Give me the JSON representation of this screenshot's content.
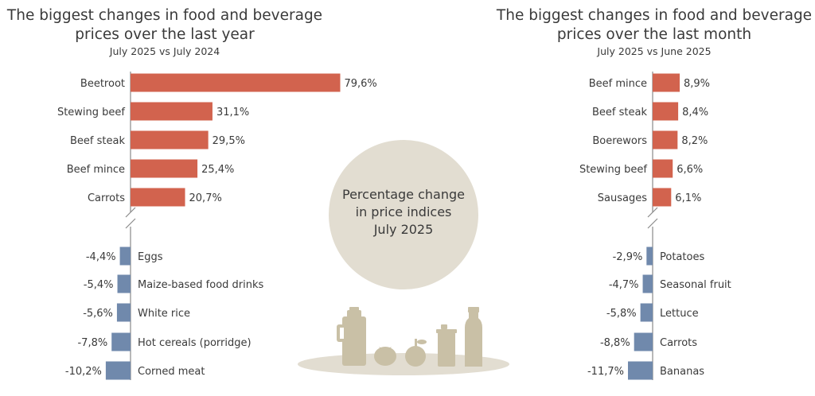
{
  "center_label": {
    "line1": "Percentage change",
    "line2": "in price indices",
    "line3": "July 2025"
  },
  "colors": {
    "increase": "#d2634e",
    "decrease": "#7089ac",
    "circle": "#e2ddd1",
    "food_icons": "#c9c0a6",
    "axis": "#8a8a8a",
    "text": "#3a3a3a"
  },
  "icons": [
    "milk-jug-icon",
    "tomato-icon",
    "apple-icon",
    "tin-can-icon",
    "bottle-icon"
  ],
  "chart_data": [
    {
      "type": "bar",
      "orientation": "horizontal",
      "title": "The biggest changes in food and beverage prices over the last year",
      "title_lines": [
        "The biggest changes in food and beverage",
        "prices over the last year"
      ],
      "subtitle": "July 2025 vs July 2024",
      "axis_break": true,
      "increases": [
        {
          "label": "Beetroot",
          "value": 79.6,
          "display": "79,6%"
        },
        {
          "label": "Stewing beef",
          "value": 31.1,
          "display": "31,1%"
        },
        {
          "label": "Beef steak",
          "value": 29.5,
          "display": "29,5%"
        },
        {
          "label": "Beef mince",
          "value": 25.4,
          "display": "25,4%"
        },
        {
          "label": "Carrots",
          "value": 20.7,
          "display": "20,7%"
        }
      ],
      "decreases": [
        {
          "label": "Eggs",
          "value": -4.4,
          "display": "-4,4%"
        },
        {
          "label": "Maize-based food drinks",
          "value": -5.4,
          "display": "-5,4%"
        },
        {
          "label": "White rice",
          "value": -5.6,
          "display": "-5,6%"
        },
        {
          "label": "Hot cereals (porridge)",
          "value": -7.8,
          "display": "-7,8%"
        },
        {
          "label": "Corned meat",
          "value": -10.2,
          "display": "-10,2%"
        }
      ]
    },
    {
      "type": "bar",
      "orientation": "horizontal",
      "title": "The biggest changes in food and beverage prices over the last month",
      "title_lines": [
        "The biggest changes in food and beverage",
        "prices over the last month"
      ],
      "subtitle": "July 2025 vs June 2025",
      "axis_break": true,
      "increases": [
        {
          "label": "Beef mince",
          "value": 8.9,
          "display": "8,9%"
        },
        {
          "label": "Beef steak",
          "value": 8.4,
          "display": "8,4%"
        },
        {
          "label": "Boerewors",
          "value": 8.2,
          "display": "8,2%"
        },
        {
          "label": "Stewing beef",
          "value": 6.6,
          "display": "6,6%"
        },
        {
          "label": "Sausages",
          "value": 6.1,
          "display": "6,1%"
        }
      ],
      "decreases": [
        {
          "label": "Potatoes",
          "value": -2.9,
          "display": "-2,9%"
        },
        {
          "label": "Seasonal fruit",
          "value": -4.7,
          "display": "-4,7%"
        },
        {
          "label": "Lettuce",
          "value": -5.8,
          "display": "-5,8%"
        },
        {
          "label": "Carrots",
          "value": -8.8,
          "display": "-8,8%"
        },
        {
          "label": "Bananas",
          "value": -11.7,
          "display": "-11,7%"
        }
      ]
    }
  ]
}
